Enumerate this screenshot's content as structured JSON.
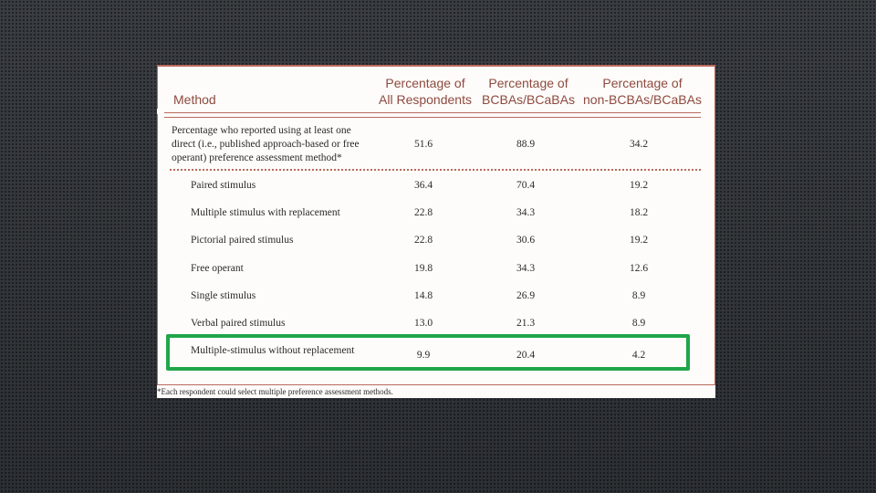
{
  "table": {
    "headers": {
      "method": "Method",
      "col1": [
        "Percentage of",
        "All Respondents"
      ],
      "col2": [
        "Percentage of",
        "BCBAs/BCaBAs"
      ],
      "col3": [
        "Percentage of",
        "non-BCBAs/BCaBAs"
      ]
    },
    "summary": {
      "label": [
        "Percentage who reported using at least one",
        "direct (i.e., published approach-based or free",
        "operant) preference assessment method*"
      ],
      "all": "51.6",
      "bcba": "88.9",
      "non_bcba": "34.2"
    },
    "rows": [
      {
        "method": "Paired stimulus",
        "all": "36.4",
        "bcba": "70.4",
        "non_bcba": "19.2"
      },
      {
        "method": "Multiple stimulus with replacement",
        "all": "22.8",
        "bcba": "34.3",
        "non_bcba": "18.2"
      },
      {
        "method": "Pictorial paired stimulus",
        "all": "22.8",
        "bcba": "30.6",
        "non_bcba": "19.2"
      },
      {
        "method": "Free operant",
        "all": "19.8",
        "bcba": "34.3",
        "non_bcba": "12.6"
      },
      {
        "method": "Single stimulus",
        "all": "14.8",
        "bcba": "26.9",
        "non_bcba": "8.9"
      },
      {
        "method": "Verbal paired stimulus",
        "all": "13.0",
        "bcba": "21.3",
        "non_bcba": "8.9"
      },
      {
        "method": "Multiple-stimulus without replacement",
        "all": "9.9",
        "bcba": "20.4",
        "non_bcba": "4.2"
      }
    ],
    "footnote": "*Each respondent could select multiple preference assessment methods."
  },
  "highlight": {
    "color": "#1fa64a",
    "row": "Multiple-stimulus without replacement"
  },
  "colors": {
    "header_text": "#8e4a3f",
    "rule": "#b96a5e",
    "body_text": "#2a2a2a"
  }
}
